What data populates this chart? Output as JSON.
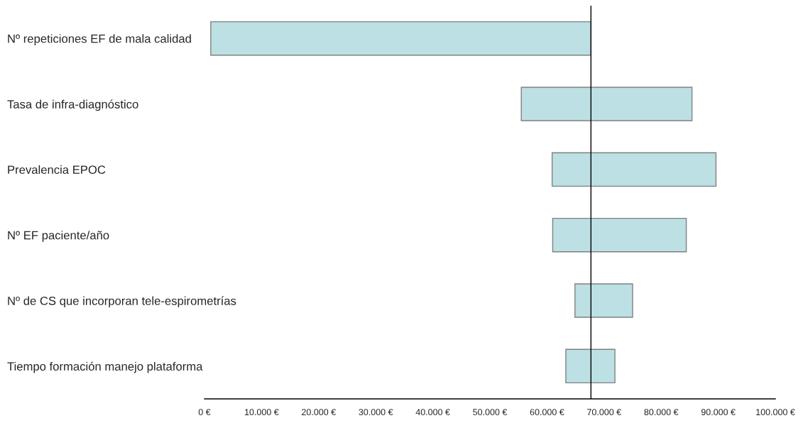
{
  "chart_data": {
    "type": "bar",
    "orientation": "horizontal",
    "categories": [
      "Nº repeticiones EF de mala calidad",
      "Tasa de infra-diagnóstico",
      "Prevalencia EPOC",
      "Nº EF paciente/año",
      "Nº de CS que incorporan tele-espirometrías",
      "Tiempo formación manejo plataforma"
    ],
    "base": [
      1100,
      55500,
      60900,
      61000,
      64900,
      63300
    ],
    "values": [
      66600,
      29900,
      28700,
      23400,
      10100,
      8600
    ],
    "color": "#bce0e3",
    "xlim": [
      0,
      100000
    ],
    "xticks": [
      {
        "value": 0,
        "label": "0 €"
      },
      {
        "value": 10000,
        "label": "10.000 €"
      },
      {
        "value": 20000,
        "label": "20.000 €"
      },
      {
        "value": 30000,
        "label": "30.000 €"
      },
      {
        "value": 40000,
        "label": "40.000 €"
      },
      {
        "value": 50000,
        "label": "50.000 €"
      },
      {
        "value": 60000,
        "label": "60.000 €"
      },
      {
        "value": 70000,
        "label": "70.000 €"
      },
      {
        "value": 80000,
        "label": "80.000 €"
      },
      {
        "value": 90000,
        "label": "90.000 €"
      },
      {
        "value": 100000,
        "label": "100.000 €"
      }
    ],
    "ref_lines": [
      {
        "axis": "x",
        "value": 67700,
        "color": "#000000"
      }
    ],
    "grid": false
  }
}
